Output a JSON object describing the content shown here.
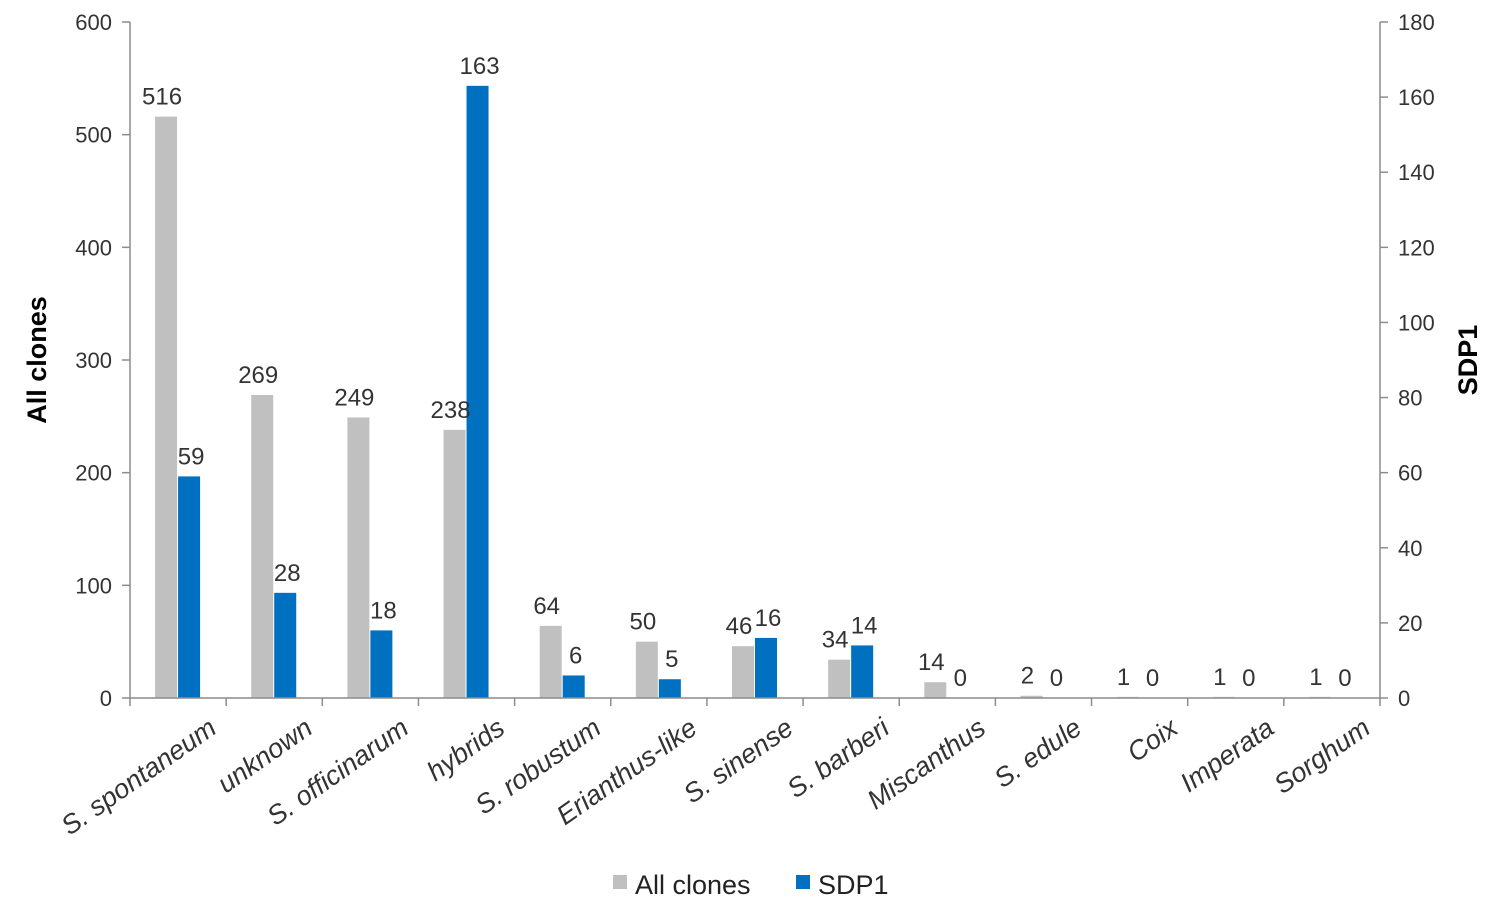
{
  "chart_data": {
    "type": "bar",
    "categories": [
      "S. spontaneum",
      "unknown",
      "S. officinarum",
      "hybrids",
      "S. robustum",
      "Erianthus-like",
      "S. sinense",
      "S. barberi",
      "Miscanthus",
      "S. edule",
      "Coix",
      "Imperata",
      "Sorghum"
    ],
    "series": [
      {
        "name": "All clones",
        "axis": "left",
        "color": "#c0c0c0",
        "values": [
          516,
          269,
          249,
          238,
          64,
          50,
          46,
          34,
          14,
          2,
          1,
          1,
          1
        ]
      },
      {
        "name": "SDP1",
        "axis": "right",
        "color": "#0070c0",
        "values": [
          59,
          28,
          18,
          163,
          6,
          5,
          16,
          14,
          0,
          0,
          0,
          0,
          0
        ]
      }
    ],
    "ylabel": "All clones",
    "y2label": "SDP1",
    "ylim": [
      0,
      600
    ],
    "y2lim": [
      0,
      180
    ],
    "yticks": [
      "0",
      "100",
      "200",
      "300",
      "400",
      "500",
      "600"
    ],
    "y2ticks": [
      "0",
      "20",
      "40",
      "60",
      "80",
      "100",
      "120",
      "140",
      "160",
      "180"
    ],
    "grid": false,
    "legend_position": "bottom"
  }
}
